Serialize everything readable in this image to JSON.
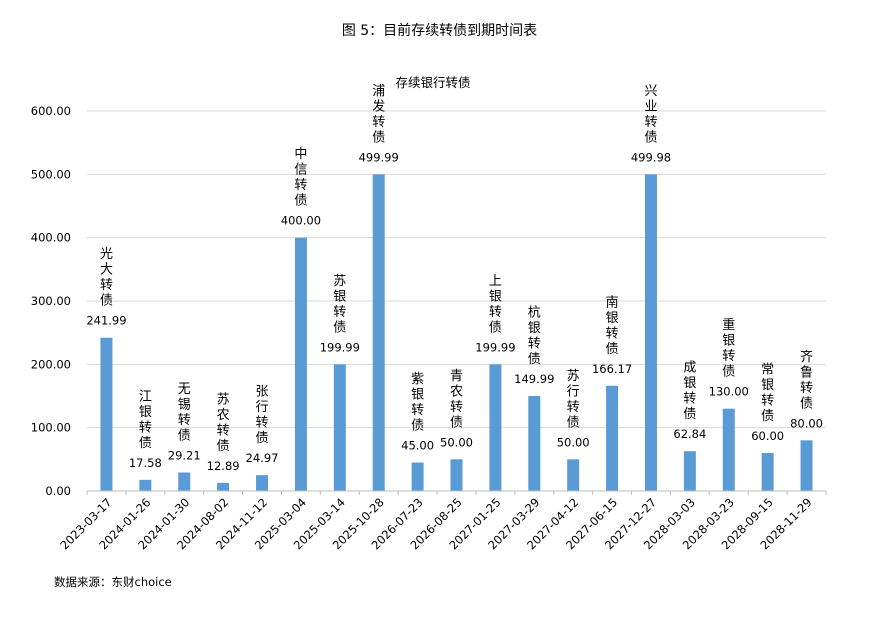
{
  "figure_title": "图 5：目前存续转债到期时间表",
  "source_text": "数据来源：东财choice",
  "colors": {
    "bar": "#5b9bd5",
    "grid": "#d9d9d9",
    "axis": "#bfbfbf"
  },
  "chart_data": {
    "type": "bar",
    "title": "存续银行转债",
    "xlabel": "",
    "ylabel": "",
    "ylim": [
      0,
      600
    ],
    "yticks": [
      "0.00",
      "100.00",
      "200.00",
      "300.00",
      "400.00",
      "500.00",
      "600.00"
    ],
    "grid": true,
    "legend": "none",
    "categories": [
      "2023-03-17",
      "2024-01-26",
      "2024-01-30",
      "2024-08-02",
      "2024-11-12",
      "2025-03-04",
      "2025-03-14",
      "2025-10-28",
      "2026-07-23",
      "2026-08-25",
      "2027-01-25",
      "2027-03-29",
      "2027-04-12",
      "2027-06-15",
      "2027-12-27",
      "2028-03-03",
      "2028-03-23",
      "2028-09-15",
      "2028-11-29"
    ],
    "values": [
      241.99,
      17.58,
      29.21,
      12.89,
      24.97,
      400.0,
      199.99,
      499.99,
      45.0,
      50.0,
      199.99,
      149.99,
      50.0,
      166.17,
      499.98,
      62.84,
      130.0,
      60.0,
      80.0
    ],
    "value_labels": [
      "241.99",
      "17.58",
      "29.21",
      "12.89",
      "24.97",
      "400.00",
      "199.99",
      "499.99",
      "45.00",
      "50.00",
      "199.99",
      "149.99",
      "50.00",
      "166.17",
      "499.98",
      "62.84",
      "130.00",
      "60.00",
      "80.00"
    ],
    "bond_names": [
      "光大转债",
      "江银转债",
      "无锡转债",
      "苏农转债",
      "张行转债",
      "中信转债",
      "苏银转债",
      "浦发转债",
      "紫银转债",
      "青农转债",
      "上银转债",
      "杭银转债",
      "苏行转债",
      "南银转债",
      "兴业转债",
      "成银转债",
      "重银转债",
      "常银转债",
      "齐鲁转债"
    ]
  }
}
